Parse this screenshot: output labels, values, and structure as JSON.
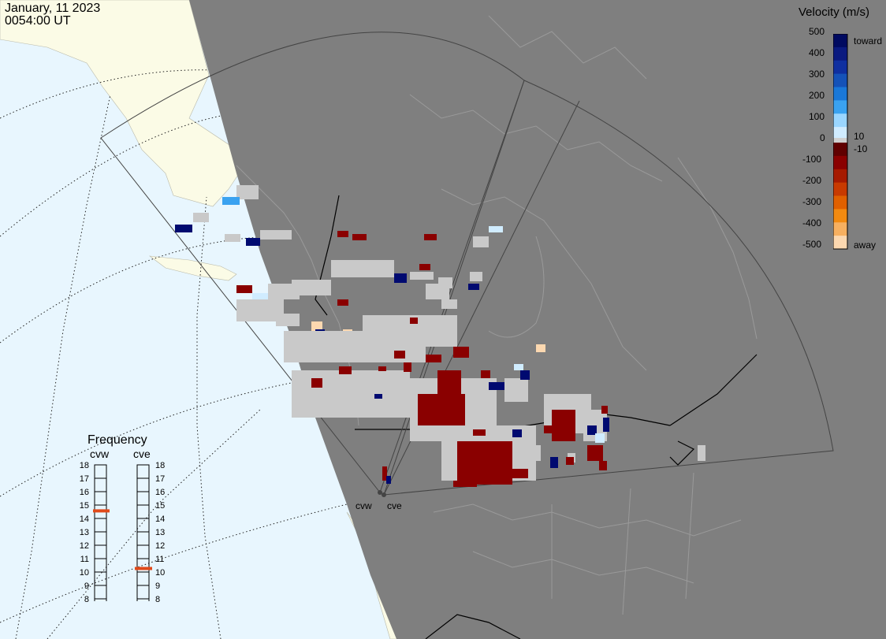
{
  "header": {
    "date": "January, 11 2023",
    "time": "0054:00 UT"
  },
  "legend": {
    "title": "Velocity (m/s)",
    "ticks": [
      "500",
      "400",
      "300",
      "200",
      "100",
      "0",
      "-100",
      "-200",
      "-300",
      "-400",
      "-500"
    ],
    "toward_label": "toward",
    "away_label": "away",
    "pos_threshold": "10",
    "neg_threshold": "-10",
    "colors": {
      "toward_scale": [
        "#d0ecff",
        "#9ad6ff",
        "#3aa2f0",
        "#1a78d8",
        "#1552b8",
        "#0f2fa0",
        "#0a1a80",
        "#000a60"
      ],
      "away_scale": [
        "#600000",
        "#8a0000",
        "#a61a00",
        "#c83a00",
        "#e06000",
        "#f28a10",
        "#f7b060",
        "#fcd8b0"
      ],
      "ground_scatter": "#c9c9c9"
    }
  },
  "frequency": {
    "title": "Frequency",
    "radars": [
      {
        "name": "cvw",
        "selected_mhz": 14.8
      },
      {
        "name": "cve",
        "selected_mhz": 10.5
      }
    ],
    "scale": [
      "18",
      "17",
      "16",
      "15",
      "14",
      "13",
      "12",
      "11",
      "10",
      "9",
      "8"
    ],
    "marker_color": "#e04a1a"
  },
  "map": {
    "night_color": "#7f7f7f",
    "day_land_color": "#fbfbe6",
    "day_ocean_color": "#e8f6fe",
    "radar_labels": [
      "cvw",
      "cve"
    ]
  }
}
